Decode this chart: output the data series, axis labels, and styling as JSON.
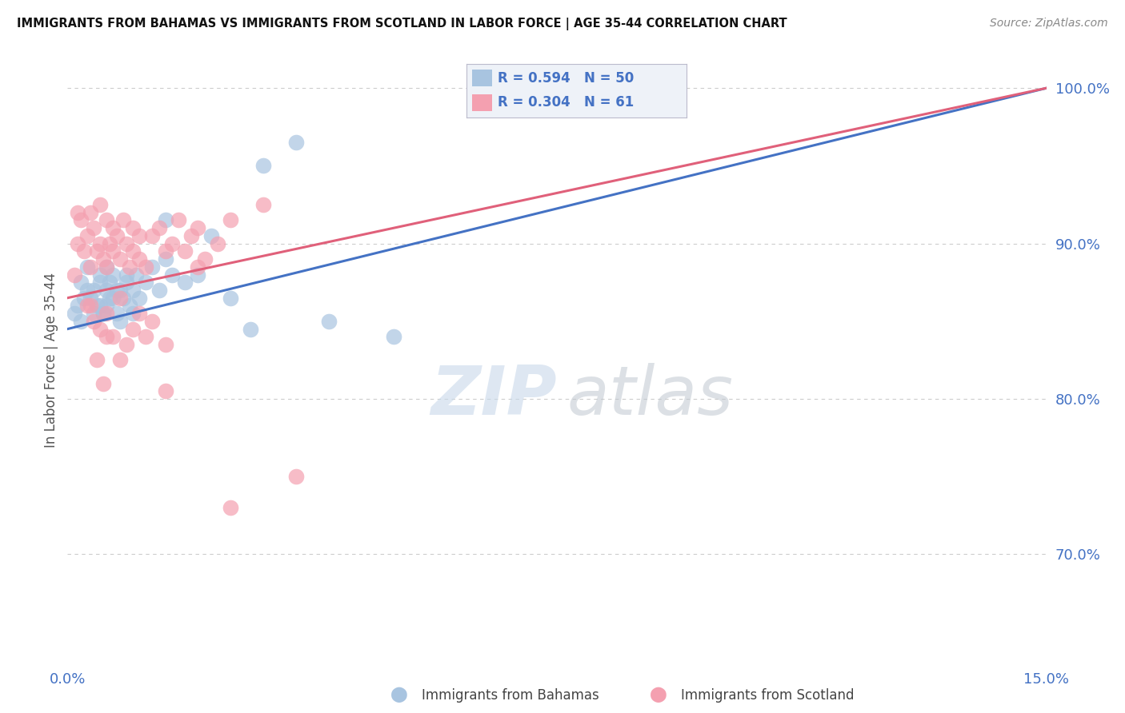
{
  "title": "IMMIGRANTS FROM BAHAMAS VS IMMIGRANTS FROM SCOTLAND IN LABOR FORCE | AGE 35-44 CORRELATION CHART",
  "source": "Source: ZipAtlas.com",
  "ylabel": "In Labor Force | Age 35-44",
  "xlim": [
    0.0,
    15.0
  ],
  "ylim": [
    63.0,
    102.0
  ],
  "x_ticks": [
    0.0,
    15.0
  ],
  "x_tick_labels": [
    "0.0%",
    "15.0%"
  ],
  "y_ticks": [
    70.0,
    80.0,
    90.0,
    100.0
  ],
  "y_tick_labels": [
    "70.0%",
    "80.0%",
    "90.0%",
    "100.0%"
  ],
  "bahamas_R": 0.594,
  "bahamas_N": 50,
  "scotland_R": 0.304,
  "scotland_N": 61,
  "bahamas_color": "#a8c4e0",
  "scotland_color": "#f4a0b0",
  "bahamas_line_color": "#4472c4",
  "scotland_line_color": "#e0607a",
  "bahamas_line": [
    0.0,
    84.5,
    15.0,
    100.0
  ],
  "scotland_line": [
    0.0,
    86.5,
    15.0,
    100.0
  ],
  "bahamas_x": [
    0.1,
    0.15,
    0.2,
    0.2,
    0.25,
    0.3,
    0.3,
    0.35,
    0.4,
    0.4,
    0.5,
    0.5,
    0.5,
    0.55,
    0.6,
    0.6,
    0.6,
    0.65,
    0.7,
    0.7,
    0.75,
    0.8,
    0.8,
    0.85,
    0.9,
    0.9,
    0.95,
    1.0,
    1.0,
    1.05,
    1.1,
    1.2,
    1.3,
    1.4,
    1.5,
    1.6,
    1.8,
    2.0,
    2.2,
    2.5,
    3.0,
    3.5,
    4.0,
    5.0,
    1.5,
    2.8,
    0.45,
    0.55,
    0.65,
    0.75
  ],
  "bahamas_y": [
    85.5,
    86.0,
    87.5,
    85.0,
    86.5,
    87.0,
    88.5,
    86.5,
    87.0,
    85.5,
    87.5,
    86.0,
    88.0,
    85.5,
    87.0,
    88.5,
    86.0,
    87.5,
    86.5,
    88.0,
    85.5,
    87.0,
    85.0,
    86.5,
    87.5,
    88.0,
    86.0,
    85.5,
    87.0,
    88.0,
    86.5,
    87.5,
    88.5,
    87.0,
    89.0,
    88.0,
    87.5,
    88.0,
    90.5,
    86.5,
    95.0,
    96.5,
    85.0,
    84.0,
    91.5,
    84.5,
    86.0,
    85.5,
    86.5,
    87.0
  ],
  "scotland_x": [
    0.1,
    0.15,
    0.15,
    0.2,
    0.25,
    0.3,
    0.35,
    0.35,
    0.4,
    0.45,
    0.5,
    0.5,
    0.55,
    0.6,
    0.6,
    0.65,
    0.7,
    0.7,
    0.75,
    0.8,
    0.85,
    0.9,
    0.95,
    1.0,
    1.0,
    1.1,
    1.1,
    1.2,
    1.3,
    1.4,
    1.5,
    1.6,
    1.7,
    1.8,
    1.9,
    2.0,
    2.1,
    2.3,
    2.5,
    3.0,
    0.3,
    0.4,
    0.5,
    0.6,
    0.7,
    0.8,
    0.9,
    1.0,
    1.1,
    1.2,
    1.3,
    1.5,
    0.45,
    0.55,
    2.0,
    1.5,
    3.5,
    0.35,
    0.6,
    0.8,
    2.5
  ],
  "scotland_y": [
    88.0,
    90.0,
    92.0,
    91.5,
    89.5,
    90.5,
    92.0,
    88.5,
    91.0,
    89.5,
    90.0,
    92.5,
    89.0,
    91.5,
    88.5,
    90.0,
    89.5,
    91.0,
    90.5,
    89.0,
    91.5,
    90.0,
    88.5,
    89.5,
    91.0,
    90.5,
    89.0,
    88.5,
    90.5,
    91.0,
    89.5,
    90.0,
    91.5,
    89.5,
    90.5,
    91.0,
    89.0,
    90.0,
    91.5,
    92.5,
    86.0,
    85.0,
    84.5,
    85.5,
    84.0,
    86.5,
    83.5,
    84.5,
    85.5,
    84.0,
    85.0,
    83.5,
    82.5,
    81.0,
    88.5,
    80.5,
    75.0,
    86.0,
    84.0,
    82.5,
    73.0
  ],
  "watermark_zip_color": "#c8d8ea",
  "watermark_atlas_color": "#c0c8d0"
}
